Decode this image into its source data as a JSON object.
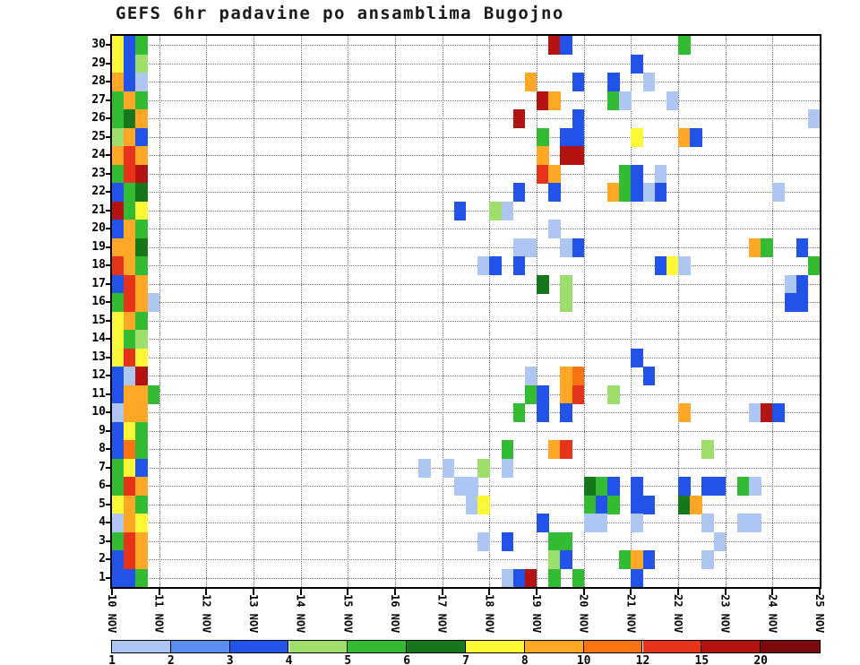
{
  "chart_data": {
    "type": "heatmap",
    "title": "GEFS 6hr padavine po ansamblima Bugojno",
    "x_axis": {
      "tick_labels": [
        "10 NOV",
        "11 NOV",
        "12 NOV",
        "13 NOV",
        "14 NOV",
        "15 NOV",
        "16 NOV",
        "17 NOV",
        "18 NOV",
        "19 NOV",
        "20 NOV",
        "21 NOV",
        "22 NOV",
        "23 NOV",
        "24 NOV",
        "25 NOV"
      ],
      "steps_per_day": 4
    },
    "y_axis": {
      "tick_labels": [
        "30",
        "29",
        "28",
        "27",
        "26",
        "25",
        "24",
        "23",
        "22",
        "21",
        "20",
        "19",
        "18",
        "17",
        "16",
        "15",
        "14",
        "13",
        "12",
        "11",
        "10",
        "9",
        "8",
        "7",
        "6",
        "5",
        "4",
        "3",
        "2",
        "1"
      ]
    },
    "n_steps": 60,
    "n_members": 30,
    "grid": "dotted",
    "legend": {
      "tick_labels": [
        "1",
        "2",
        "3",
        "4",
        "5",
        "6",
        "7",
        "8",
        "10",
        "12",
        "15",
        "20"
      ],
      "colors": [
        "#aec7f2",
        "#5b8cf0",
        "#2253e8",
        "#9ede6a",
        "#33bb33",
        "#16771c",
        "#fdf835",
        "#ffa726",
        "#f97412",
        "#e5341a",
        "#b31412",
        "#7d0b0b"
      ]
    },
    "cells": [
      [
        30,
        0,
        6
      ],
      [
        30,
        1,
        2
      ],
      [
        30,
        2,
        4
      ],
      [
        30,
        37,
        10
      ],
      [
        30,
        38,
        2
      ],
      [
        30,
        48,
        4
      ],
      [
        29,
        0,
        6
      ],
      [
        29,
        1,
        2
      ],
      [
        29,
        2,
        3
      ],
      [
        29,
        44,
        2
      ],
      [
        28,
        0,
        7
      ],
      [
        28,
        1,
        2
      ],
      [
        28,
        2,
        0
      ],
      [
        28,
        35,
        7
      ],
      [
        28,
        39,
        2
      ],
      [
        28,
        42,
        2
      ],
      [
        28,
        45,
        0
      ],
      [
        27,
        0,
        4
      ],
      [
        27,
        1,
        7
      ],
      [
        27,
        2,
        4
      ],
      [
        27,
        36,
        10
      ],
      [
        27,
        37,
        7
      ],
      [
        27,
        42,
        4
      ],
      [
        27,
        43,
        0
      ],
      [
        27,
        47,
        0
      ],
      [
        26,
        0,
        4
      ],
      [
        26,
        1,
        5
      ],
      [
        26,
        2,
        7
      ],
      [
        26,
        34,
        10
      ],
      [
        26,
        39,
        2
      ],
      [
        26,
        59,
        0
      ],
      [
        25,
        0,
        3
      ],
      [
        25,
        1,
        7
      ],
      [
        25,
        2,
        2
      ],
      [
        25,
        36,
        4
      ],
      [
        25,
        38,
        2
      ],
      [
        25,
        39,
        2
      ],
      [
        25,
        44,
        6
      ],
      [
        25,
        48,
        7
      ],
      [
        25,
        49,
        2
      ],
      [
        24,
        0,
        7
      ],
      [
        24,
        1,
        9
      ],
      [
        24,
        2,
        7
      ],
      [
        24,
        36,
        7
      ],
      [
        24,
        38,
        10
      ],
      [
        24,
        39,
        10
      ],
      [
        23,
        0,
        4
      ],
      [
        23,
        1,
        9
      ],
      [
        23,
        2,
        10
      ],
      [
        23,
        36,
        9
      ],
      [
        23,
        37,
        7
      ],
      [
        23,
        43,
        4
      ],
      [
        23,
        44,
        2
      ],
      [
        23,
        46,
        0
      ],
      [
        22,
        0,
        2
      ],
      [
        22,
        1,
        4
      ],
      [
        22,
        2,
        5
      ],
      [
        22,
        34,
        2
      ],
      [
        22,
        37,
        2
      ],
      [
        22,
        42,
        7
      ],
      [
        22,
        43,
        4
      ],
      [
        22,
        44,
        2
      ],
      [
        22,
        45,
        0
      ],
      [
        22,
        46,
        2
      ],
      [
        22,
        56,
        0
      ],
      [
        21,
        0,
        10
      ],
      [
        21,
        1,
        4
      ],
      [
        21,
        2,
        6
      ],
      [
        21,
        29,
        2
      ],
      [
        21,
        32,
        3
      ],
      [
        21,
        33,
        0
      ],
      [
        20,
        0,
        2
      ],
      [
        20,
        1,
        7
      ],
      [
        20,
        2,
        4
      ],
      [
        20,
        37,
        0
      ],
      [
        19,
        0,
        7
      ],
      [
        19,
        1,
        7
      ],
      [
        19,
        2,
        5
      ],
      [
        19,
        34,
        0
      ],
      [
        19,
        35,
        0
      ],
      [
        19,
        38,
        0
      ],
      [
        19,
        39,
        2
      ],
      [
        19,
        54,
        7
      ],
      [
        19,
        55,
        4
      ],
      [
        19,
        58,
        2
      ],
      [
        18,
        0,
        9
      ],
      [
        18,
        1,
        7
      ],
      [
        18,
        2,
        4
      ],
      [
        18,
        31,
        0
      ],
      [
        18,
        32,
        2
      ],
      [
        18,
        34,
        2
      ],
      [
        18,
        46,
        2
      ],
      [
        18,
        47,
        6
      ],
      [
        18,
        48,
        0
      ],
      [
        18,
        59,
        4
      ],
      [
        17,
        0,
        2
      ],
      [
        17,
        1,
        9
      ],
      [
        17,
        2,
        7
      ],
      [
        17,
        36,
        5
      ],
      [
        17,
        38,
        3
      ],
      [
        17,
        57,
        0
      ],
      [
        17,
        58,
        2
      ],
      [
        16,
        0,
        4
      ],
      [
        16,
        1,
        9
      ],
      [
        16,
        2,
        7
      ],
      [
        16,
        3,
        0
      ],
      [
        16,
        38,
        3
      ],
      [
        16,
        57,
        2
      ],
      [
        16,
        58,
        2
      ],
      [
        15,
        0,
        6
      ],
      [
        15,
        1,
        7
      ],
      [
        15,
        2,
        4
      ],
      [
        14,
        0,
        6
      ],
      [
        14,
        1,
        4
      ],
      [
        14,
        2,
        3
      ],
      [
        13,
        0,
        6
      ],
      [
        13,
        1,
        9
      ],
      [
        13,
        2,
        6
      ],
      [
        13,
        44,
        2
      ],
      [
        12,
        0,
        2
      ],
      [
        12,
        1,
        0
      ],
      [
        12,
        2,
        10
      ],
      [
        12,
        35,
        0
      ],
      [
        12,
        38,
        7
      ],
      [
        12,
        39,
        8
      ],
      [
        12,
        45,
        2
      ],
      [
        11,
        0,
        2
      ],
      [
        11,
        1,
        7
      ],
      [
        11,
        2,
        7
      ],
      [
        11,
        3,
        4
      ],
      [
        11,
        35,
        4
      ],
      [
        11,
        36,
        2
      ],
      [
        11,
        38,
        7
      ],
      [
        11,
        39,
        9
      ],
      [
        11,
        42,
        3
      ],
      [
        10,
        0,
        0
      ],
      [
        10,
        1,
        7
      ],
      [
        10,
        2,
        7
      ],
      [
        10,
        34,
        4
      ],
      [
        10,
        36,
        2
      ],
      [
        10,
        38,
        2
      ],
      [
        10,
        48,
        7
      ],
      [
        10,
        54,
        0
      ],
      [
        10,
        55,
        10
      ],
      [
        10,
        56,
        2
      ],
      [
        9,
        0,
        2
      ],
      [
        9,
        1,
        6
      ],
      [
        9,
        2,
        4
      ],
      [
        8,
        0,
        2
      ],
      [
        8,
        1,
        8
      ],
      [
        8,
        2,
        4
      ],
      [
        8,
        33,
        4
      ],
      [
        8,
        37,
        7
      ],
      [
        8,
        38,
        9
      ],
      [
        8,
        50,
        3
      ],
      [
        7,
        0,
        4
      ],
      [
        7,
        1,
        6
      ],
      [
        7,
        2,
        2
      ],
      [
        7,
        26,
        0
      ],
      [
        7,
        28,
        0
      ],
      [
        7,
        31,
        3
      ],
      [
        7,
        33,
        0
      ],
      [
        6,
        0,
        4
      ],
      [
        6,
        1,
        9
      ],
      [
        6,
        2,
        7
      ],
      [
        6,
        29,
        0
      ],
      [
        6,
        30,
        0
      ],
      [
        6,
        40,
        5
      ],
      [
        6,
        41,
        4
      ],
      [
        6,
        42,
        2
      ],
      [
        6,
        44,
        2
      ],
      [
        6,
        48,
        2
      ],
      [
        6,
        50,
        2
      ],
      [
        6,
        51,
        2
      ],
      [
        6,
        53,
        4
      ],
      [
        6,
        54,
        0
      ],
      [
        5,
        0,
        6
      ],
      [
        5,
        1,
        7
      ],
      [
        5,
        2,
        4
      ],
      [
        5,
        30,
        0
      ],
      [
        5,
        31,
        6
      ],
      [
        5,
        40,
        4
      ],
      [
        5,
        41,
        2
      ],
      [
        5,
        42,
        4
      ],
      [
        5,
        44,
        2
      ],
      [
        5,
        45,
        2
      ],
      [
        5,
        48,
        5
      ],
      [
        5,
        49,
        7
      ],
      [
        4,
        0,
        0
      ],
      [
        4,
        1,
        7
      ],
      [
        4,
        2,
        6
      ],
      [
        4,
        36,
        2
      ],
      [
        4,
        40,
        0
      ],
      [
        4,
        41,
        0
      ],
      [
        4,
        44,
        0
      ],
      [
        4,
        50,
        0
      ],
      [
        4,
        53,
        0
      ],
      [
        4,
        54,
        0
      ],
      [
        3,
        0,
        4
      ],
      [
        3,
        1,
        9
      ],
      [
        3,
        2,
        7
      ],
      [
        3,
        31,
        0
      ],
      [
        3,
        33,
        2
      ],
      [
        3,
        37,
        4
      ],
      [
        3,
        38,
        4
      ],
      [
        3,
        51,
        0
      ],
      [
        2,
        0,
        2
      ],
      [
        2,
        1,
        9
      ],
      [
        2,
        2,
        7
      ],
      [
        2,
        37,
        3
      ],
      [
        2,
        38,
        2
      ],
      [
        2,
        43,
        4
      ],
      [
        2,
        44,
        7
      ],
      [
        2,
        45,
        2
      ],
      [
        2,
        50,
        0
      ],
      [
        1,
        0,
        2
      ],
      [
        1,
        1,
        2
      ],
      [
        1,
        2,
        4
      ],
      [
        1,
        33,
        0
      ],
      [
        1,
        34,
        2
      ],
      [
        1,
        35,
        10
      ],
      [
        1,
        37,
        4
      ],
      [
        1,
        39,
        4
      ],
      [
        1,
        44,
        2
      ]
    ]
  }
}
